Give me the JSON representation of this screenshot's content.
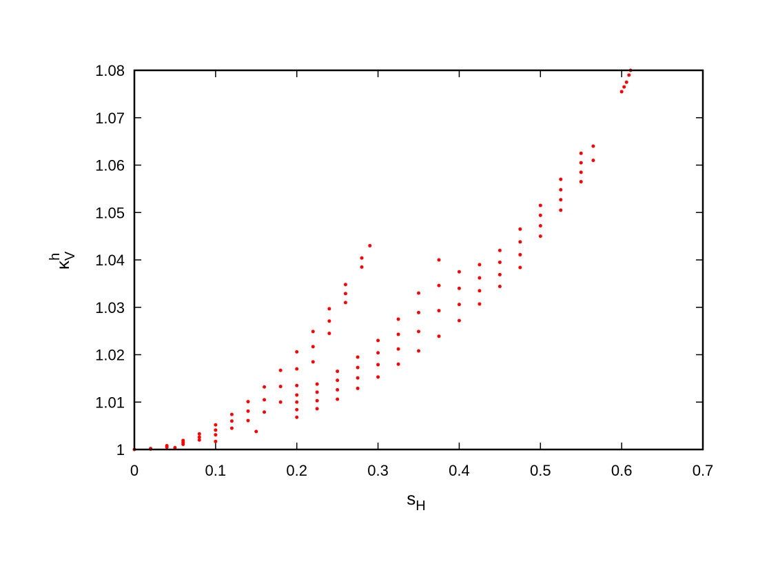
{
  "chart_data": {
    "type": "scatter",
    "xlabel": "s",
    "xlabel_sub": "H",
    "ylabel": "κ",
    "ylabel_sub": "V",
    "ylabel_sup": "h",
    "color": "#ff0000",
    "xlim": [
      0,
      0.7
    ],
    "xticks": [
      0,
      0.1,
      0.2,
      0.3,
      0.4,
      0.5,
      0.6,
      0.7
    ],
    "ylim": [
      1,
      1.08
    ],
    "yticks": [
      1,
      1.01,
      1.02,
      1.03,
      1.04,
      1.05,
      1.06,
      1.07,
      1.08
    ],
    "x": [
      0,
      0.02,
      0.02,
      0.04,
      0.04,
      0.06,
      0.06,
      0.06,
      0.08,
      0.08,
      0.08,
      0.1,
      0.1,
      0.1,
      0.12,
      0.12,
      0.12,
      0.14,
      0.14,
      0.14,
      0.16,
      0.16,
      0.16,
      0.18,
      0.18,
      0.18,
      0.2,
      0.2,
      0.2,
      0.22,
      0.22,
      0.22,
      0.24,
      0.24,
      0.24,
      0.26,
      0.26,
      0.26,
      0.28,
      0.28,
      0.29,
      0.05,
      0.1,
      0.15,
      0.2,
      0.2,
      0.2,
      0.2,
      0.225,
      0.225,
      0.225,
      0.225,
      0.25,
      0.25,
      0.25,
      0.25,
      0.275,
      0.275,
      0.275,
      0.275,
      0.3,
      0.3,
      0.3,
      0.3,
      0.325,
      0.325,
      0.325,
      0.325,
      0.35,
      0.35,
      0.35,
      0.35,
      0.375,
      0.375,
      0.375,
      0.375,
      0.4,
      0.4,
      0.4,
      0.4,
      0.425,
      0.425,
      0.425,
      0.425,
      0.45,
      0.45,
      0.45,
      0.45,
      0.475,
      0.475,
      0.475,
      0.475,
      0.5,
      0.5,
      0.5,
      0.5,
      0.525,
      0.525,
      0.525,
      0.525,
      0.55,
      0.55,
      0.55,
      0.55,
      0.565,
      0.565,
      0.6,
      0.603,
      0.606,
      0.609,
      0.611
    ],
    "values": [
      1,
      1.0002,
      1.0001,
      1.0008,
      1.0005,
      1.0019,
      1.0011,
      1.0015,
      1.0033,
      1.002,
      1.0026,
      1.0052,
      1.0031,
      1.0041,
      1.0074,
      1.0045,
      1.006,
      1.0101,
      1.0061,
      1.0081,
      1.0132,
      1.0079,
      1.0105,
      1.0167,
      1.01,
      1.0133,
      1.0206,
      1.0135,
      1.017,
      1.0249,
      1.0185,
      1.0217,
      1.0297,
      1.0245,
      1.0271,
      1.0348,
      1.031,
      1.0329,
      1.0404,
      1.0385,
      1.043,
      1.0004,
      1.0017,
      1.0038,
      1.0068,
      1.0115,
      1.0084,
      1.01,
      1.0086,
      1.0138,
      1.0103,
      1.0121,
      1.0106,
      1.0165,
      1.0126,
      1.0146,
      1.0129,
      1.0195,
      1.0151,
      1.0173,
      1.0153,
      1.023,
      1.0179,
      1.0204,
      1.018,
      1.0275,
      1.0212,
      1.0243,
      1.0208,
      1.033,
      1.0249,
      1.0289,
      1.0239,
      1.04,
      1.0293,
      1.0346,
      1.0272,
      1.0375,
      1.0306,
      1.034,
      1.0307,
      1.039,
      1.0335,
      1.0362,
      1.0344,
      1.042,
      1.0369,
      1.0395,
      1.0384,
      1.0465,
      1.0411,
      1.0438,
      1.045,
      1.0515,
      1.0472,
      1.0494,
      1.0505,
      1.057,
      1.0527,
      1.0548,
      1.0565,
      1.0625,
      1.0585,
      1.0605,
      1.061,
      1.064,
      1.0755,
      1.0765,
      1.0775,
      1.079,
      1.08
    ]
  }
}
